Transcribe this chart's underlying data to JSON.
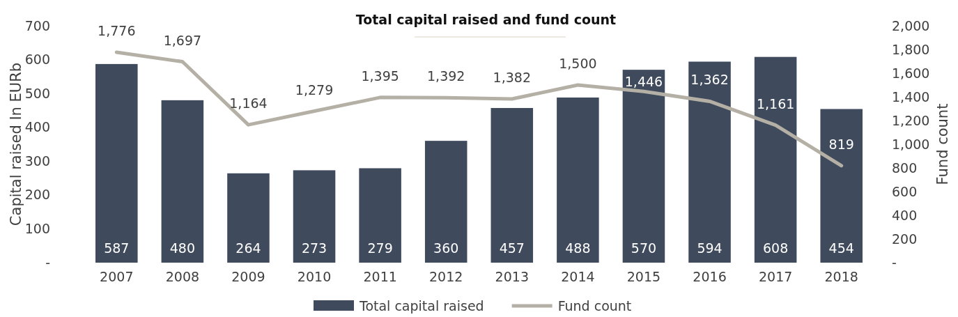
{
  "chart_data": {
    "type": "bar",
    "title": "Total capital raised and fund count",
    "ylabel": "Capital raised In EURb",
    "y2label": "Fund count",
    "categories": [
      "2007",
      "2008",
      "2009",
      "2010",
      "2011",
      "2012",
      "2013",
      "2014",
      "2015",
      "2016",
      "2017",
      "2018"
    ],
    "series": [
      {
        "name": "Total capital raised",
        "color": "#3f4a5c",
        "values": [
          587,
          480,
          264,
          273,
          279,
          360,
          457,
          488,
          570,
          594,
          608,
          454
        ],
        "value_labels": [
          "587",
          "480",
          "264",
          "273",
          "279",
          "360",
          "457",
          "488",
          "570",
          "594",
          "608",
          "454"
        ]
      },
      {
        "name": "Fund count",
        "type": "line",
        "axis": "y2",
        "color": "#b5b0a5",
        "values": [
          1776,
          1697,
          1164,
          1279,
          1395,
          1392,
          1382,
          1500,
          1446,
          1362,
          1161,
          819
        ],
        "value_labels": [
          "1,776",
          "1,697",
          "1,164",
          "1,279",
          "1,395",
          "1,392",
          "1,382",
          "1,500",
          "1,446",
          "1,362",
          "1,161",
          "819"
        ]
      }
    ],
    "ylim": [
      0,
      700
    ],
    "yticks": [
      {
        "value": 0,
        "label": "-"
      },
      100,
      200,
      300,
      400,
      500,
      600,
      700
    ],
    "y2lim": [
      0,
      2000
    ],
    "y2ticks": [
      {
        "value": 0,
        "label": "-"
      },
      200,
      400,
      600,
      800,
      {
        "value": 1000,
        "label": "1,000"
      },
      {
        "value": 1200,
        "label": "1,200"
      },
      {
        "value": 1400,
        "label": "1,400"
      },
      {
        "value": 1600,
        "label": "1,600"
      },
      {
        "value": 1800,
        "label": "1,800"
      },
      {
        "value": 2000,
        "label": "2,000"
      }
    ],
    "grid": false,
    "legend": "bottom",
    "line_style": "solid",
    "marker": "none"
  }
}
